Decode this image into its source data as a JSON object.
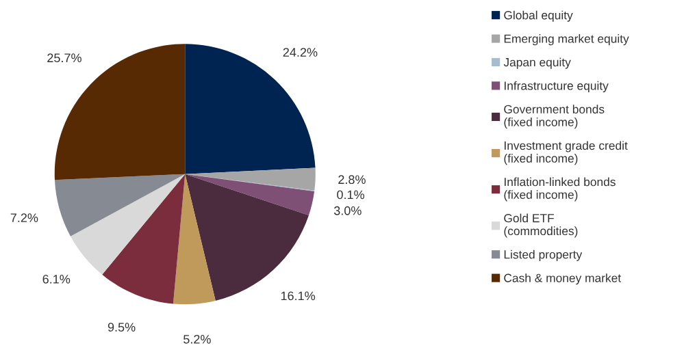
{
  "chart_data": {
    "type": "pie",
    "categories": [
      "Global equity",
      "Emerging market equity",
      "Japan equity",
      "Infrastructure equity",
      "Government bonds\n(fixed income)",
      "Investment grade credit\n(fixed income)",
      "Inflation-linked bonds\n(fixed income)",
      "Gold ETF\n(commodities)",
      "Listed property",
      "Cash & money market"
    ],
    "values": [
      24.2,
      2.8,
      0.1,
      3.0,
      16.1,
      5.2,
      9.5,
      6.1,
      7.2,
      25.7
    ],
    "value_labels": [
      "24.2%",
      "2.8%",
      "0.1%",
      "3.0%",
      "16.1%",
      "5.2%",
      "9.5%",
      "6.1%",
      "7.2%",
      "25.7%"
    ],
    "colors": [
      "#002452",
      "#a6a6a6",
      "#a7bccf",
      "#7e5075",
      "#4a2c3e",
      "#c09a5b",
      "#7b2d3d",
      "#d9d9d9",
      "#868b93",
      "#572a04"
    ],
    "legend": "right"
  }
}
